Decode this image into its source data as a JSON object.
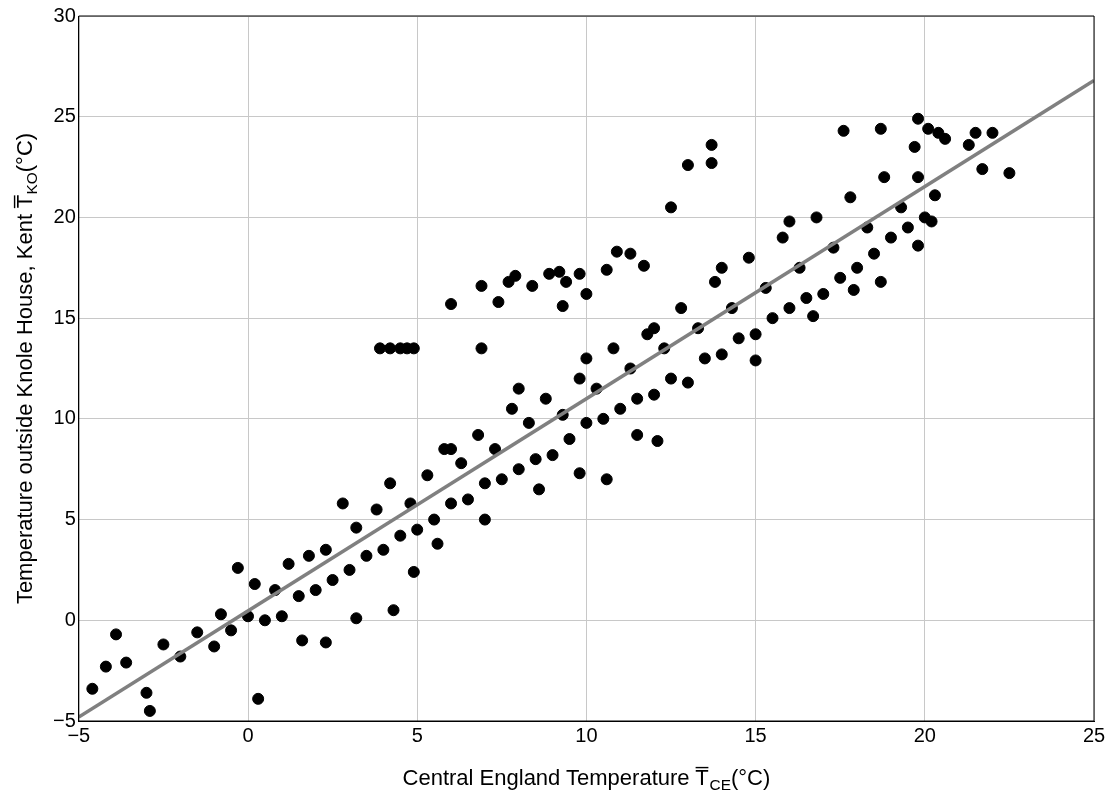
{
  "chart_data": {
    "type": "scatter",
    "xlabel": "Central England Temperature T̅$_{CE}$(°C)",
    "ylabel": "Temperature outside Knole House, Kent T̅$_{KO}$(°C)",
    "xlim": [
      -5,
      25
    ],
    "ylim": [
      -5,
      30
    ],
    "xticks": [
      {
        "value": -5,
        "label": "−5"
      },
      0,
      5,
      10,
      15,
      20,
      25
    ],
    "yticks": [
      {
        "value": -5,
        "label": "−5"
      },
      0,
      5,
      10,
      15,
      20,
      25,
      30
    ],
    "grid": true,
    "series": [
      {
        "color": "#000000",
        "marker": "circle",
        "x": [
          -4.6,
          -2.9,
          -3.0,
          0.3,
          -3.9,
          -4.2,
          -3.6,
          3.9,
          4.2,
          4.5,
          4.7,
          4.9,
          6.9,
          4.3,
          4.9,
          2.3,
          3.2,
          1.6,
          6.0,
          6.9,
          7.4,
          7.7,
          7.9,
          8.4,
          8.9,
          9.2,
          9.4,
          9.8,
          10.0,
          10.6,
          10.9,
          11.3,
          11.7,
          9.3,
          13.7,
          13.7,
          13.0,
          12.5,
          19.8,
          17.6,
          18.7,
          20.1,
          20.4,
          20.6,
          21.5,
          22.0,
          21.3,
          21.7,
          22.5,
          19.7,
          20.3,
          19.8,
          18.7,
          17.9,
          10.6,
          12.1,
          11.5,
          9.8,
          8.6,
          7.0,
          5.6,
          15.0,
          16.7,
          -2.5,
          -2.0,
          -1.5,
          -1.0,
          -0.8,
          -0.5,
          -0.3,
          0.0,
          0.2,
          0.5,
          0.8,
          1.0,
          1.2,
          1.5,
          1.8,
          2.0,
          2.3,
          2.5,
          2.8,
          3.0,
          3.2,
          3.5,
          3.8,
          4.0,
          4.2,
          4.5,
          4.8,
          5.0,
          5.3,
          5.5,
          5.8,
          6.0,
          6.3,
          6.5,
          6.8,
          7.0,
          7.3,
          7.5,
          7.8,
          8.0,
          8.3,
          8.5,
          8.8,
          9.0,
          9.3,
          9.5,
          9.8,
          10.0,
          10.3,
          10.5,
          10.8,
          11.0,
          11.3,
          11.5,
          11.8,
          12.0,
          12.3,
          12.5,
          12.8,
          13.0,
          13.3,
          13.5,
          13.8,
          14.0,
          14.3,
          14.5,
          14.8,
          15.0,
          15.3,
          15.5,
          15.8,
          16.0,
          16.3,
          16.5,
          16.8,
          17.0,
          17.3,
          17.5,
          17.8,
          18.0,
          18.3,
          18.5,
          18.8,
          19.0,
          19.3,
          19.5,
          19.8,
          20.0,
          20.2,
          10.0,
          12.0,
          14.0,
          16.0,
          8.0,
          6.0
        ],
        "values": [
          -3.4,
          -4.5,
          -3.6,
          -3.9,
          -0.7,
          -2.3,
          -2.1,
          13.5,
          13.5,
          13.5,
          13.5,
          13.5,
          13.5,
          0.5,
          2.4,
          -1.1,
          0.1,
          -1.0,
          15.7,
          16.6,
          15.8,
          16.8,
          17.1,
          16.6,
          17.2,
          17.3,
          16.8,
          17.2,
          16.2,
          17.4,
          18.3,
          18.2,
          17.6,
          15.6,
          23.6,
          22.7,
          22.6,
          20.5,
          24.9,
          24.3,
          24.4,
          24.4,
          24.2,
          23.9,
          24.2,
          24.2,
          23.6,
          22.4,
          22.2,
          23.5,
          21.1,
          18.6,
          16.8,
          16.4,
          7.0,
          8.9,
          9.2,
          7.3,
          6.5,
          5.0,
          3.8,
          12.9,
          15.1,
          -1.2,
          -1.8,
          -0.6,
          -1.3,
          0.3,
          -0.5,
          2.6,
          0.2,
          1.8,
          0.0,
          1.5,
          0.2,
          2.8,
          1.2,
          3.2,
          1.5,
          3.5,
          2.0,
          5.8,
          2.5,
          4.6,
          3.2,
          5.5,
          3.5,
          6.8,
          4.2,
          5.8,
          4.5,
          7.2,
          5.0,
          8.5,
          5.8,
          7.8,
          6.0,
          9.2,
          6.8,
          8.5,
          7.0,
          10.5,
          7.5,
          9.8,
          8.0,
          11.0,
          8.2,
          10.2,
          9.0,
          12.0,
          9.8,
          11.5,
          10.0,
          13.5,
          10.5,
          12.5,
          11.0,
          14.2,
          11.2,
          13.5,
          12.0,
          15.5,
          11.8,
          14.5,
          13.0,
          16.8,
          13.2,
          15.5,
          14.0,
          18.0,
          14.2,
          16.5,
          15.0,
          19.0,
          15.5,
          17.5,
          16.0,
          20.0,
          16.2,
          18.5,
          17.0,
          21.0,
          17.5,
          19.5,
          18.2,
          22.0,
          19.0,
          20.5,
          19.5,
          22.0,
          20.0,
          19.8,
          13.0,
          14.5,
          17.5,
          19.8,
          11.5,
          8.5
        ]
      },
      {
        "type": "line",
        "color": "#808080",
        "x": [
          -5,
          25
        ],
        "values": [
          -4.8,
          26.8
        ]
      }
    ]
  }
}
